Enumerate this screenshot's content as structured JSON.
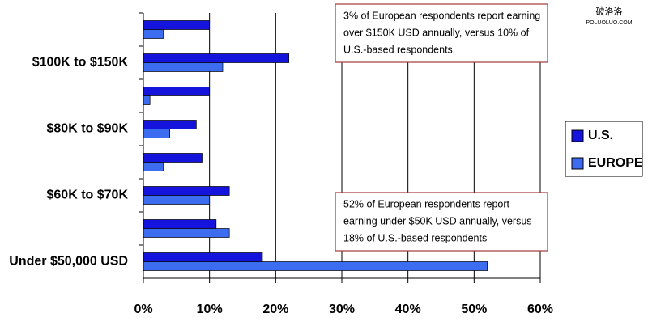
{
  "chart_data": {
    "type": "hbar",
    "categories": [
      null,
      "$100K to $150K",
      null,
      "$80K to $90K",
      null,
      "$60K to $70K",
      null,
      "Under $50,000 USD"
    ],
    "series": [
      {
        "name": "U.S.",
        "color": "#1414dc",
        "values": [
          10,
          22,
          10,
          8,
          9,
          13,
          11,
          18
        ]
      },
      {
        "name": "EUROPE",
        "color": "#3c6cf0",
        "values": [
          3,
          12,
          1,
          4,
          3,
          10,
          13,
          52
        ]
      }
    ],
    "xlim": [
      0,
      60
    ],
    "xticks": [
      {
        "value": 0,
        "label": "0%"
      },
      {
        "value": 10,
        "label": "10%"
      },
      {
        "value": 20,
        "label": "20%"
      },
      {
        "value": 30,
        "label": "30%"
      },
      {
        "value": 40,
        "label": "40%"
      },
      {
        "value": 50,
        "label": "50%"
      },
      {
        "value": 60,
        "label": "60%"
      }
    ],
    "grid": true,
    "legend": "right",
    "annotations": [
      {
        "lines": [
          "3% of European respondents report earning",
          "over $150K USD annually, versus 10% of",
          "U.S.-based respondents"
        ]
      },
      {
        "lines": [
          "52% of European respondents report",
          "earning under $50K USD annually, versus",
          "18% of U.S.-based respondents"
        ]
      }
    ]
  },
  "watermark": {
    "title": "破洛洛",
    "site": "POLUOLUO.COM"
  }
}
